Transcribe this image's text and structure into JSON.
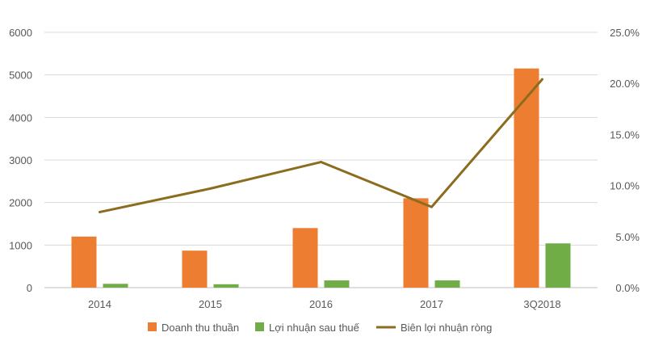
{
  "chart_data": {
    "type": "bar",
    "categories": [
      "2014",
      "2015",
      "2016",
      "2017",
      "3Q2018"
    ],
    "series": [
      {
        "name": "Doanh thu thuần",
        "type": "bar",
        "axis": "left",
        "color": "#ED7D31",
        "values": [
          1200,
          870,
          1400,
          2100,
          5150
        ]
      },
      {
        "name": "Lợi nhuận sau thuế",
        "type": "bar",
        "axis": "left",
        "color": "#70AD47",
        "values": [
          90,
          80,
          170,
          170,
          1040
        ]
      },
      {
        "name": "Biên lợi nhuận ròng",
        "type": "line",
        "axis": "right",
        "color": "#8C6D1F",
        "values": [
          7.4,
          9.7,
          12.3,
          7.9,
          20.4
        ]
      }
    ],
    "y_left": {
      "range": [
        0,
        6000
      ],
      "ticks": [
        "0",
        "1000",
        "2000",
        "3000",
        "4000",
        "5000",
        "6000"
      ]
    },
    "y_right": {
      "range": [
        0,
        25
      ],
      "ticks": [
        "0.0%",
        "5.0%",
        "10.0%",
        "15.0%",
        "20.0%",
        "25.0%"
      ]
    },
    "title": "",
    "xlabel": "",
    "ylabel": "",
    "grid": true,
    "legend_position": "bottom"
  }
}
